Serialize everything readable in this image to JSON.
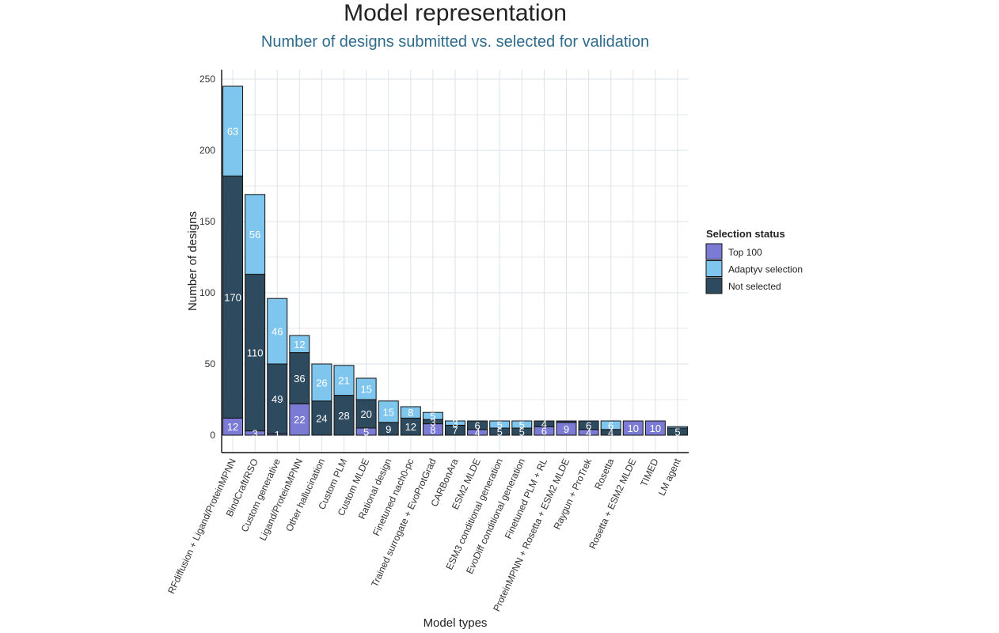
{
  "chart_data": {
    "type": "bar",
    "stacked": true,
    "title": "Model representation",
    "subtitle": "Number of designs submitted vs. selected for validation",
    "xlabel": "Model types",
    "ylabel": "Number of designs",
    "ylim": [
      0,
      255
    ],
    "yticks": [
      0,
      50,
      100,
      150,
      200,
      250
    ],
    "grid": true,
    "legend_position": "right",
    "legend_title": "Selection status",
    "categories": [
      "RFdiffusion + Ligand/ProteinMPNN",
      "BindCraft/RSO",
      "Custom generative",
      "Ligand/ProteinMPNN",
      "Other hallucination",
      "Custom PLM",
      "Custom MLDE",
      "Rational design",
      "Finetuned nach0-pc",
      "Trained surrogate + EvoProtGrad",
      "CARBonAra",
      "ESM2 MLDE",
      "ESM3 conditional generation",
      "EvoDiff conditional generation",
      "Finetuned PLM + RL",
      "ProteinMPNN + Rosetta + ESM2 MLDE",
      "Raygun + ProTrek",
      "Rosetta",
      "Rosetta + ESM2 MLDE",
      "TIMED",
      "LM agent"
    ],
    "series": [
      {
        "name": "Top 100",
        "color": "#7b7bd6",
        "values": [
          12,
          3,
          1,
          22,
          0,
          0,
          5,
          0,
          0,
          8,
          0,
          4,
          0,
          0,
          6,
          9,
          4,
          0,
          10,
          10,
          0
        ],
        "labels": [
          "12",
          "3",
          "1",
          "22",
          "",
          "",
          "5",
          "",
          "",
          "8",
          "",
          "4",
          "",
          "",
          "6",
          "9",
          "4",
          "",
          "10",
          "10",
          ""
        ]
      },
      {
        "name": "Not selected",
        "color": "#2e4a5f",
        "values": [
          170,
          110,
          49,
          36,
          24,
          28,
          20,
          9,
          12,
          3,
          7,
          6,
          5,
          5,
          4,
          1,
          6,
          4,
          0,
          0,
          5
        ],
        "labels": [
          "170",
          "110",
          "49",
          "36",
          "24",
          "28",
          "20",
          "9",
          "12",
          "3",
          "7",
          "6",
          "5",
          "5",
          "4",
          "",
          "6",
          "4",
          "",
          "",
          "5"
        ]
      },
      {
        "name": "Adaptyv selection",
        "color": "#7fc6ef",
        "values": [
          63,
          56,
          46,
          12,
          26,
          21,
          15,
          15,
          8,
          5,
          3,
          0,
          5,
          5,
          0,
          0,
          0,
          6,
          0,
          0,
          1
        ],
        "labels": [
          "63",
          "56",
          "46",
          "12",
          "26",
          "21",
          "15",
          "15",
          "8",
          "5",
          "3",
          "",
          "5",
          "5",
          "",
          "",
          "",
          "6",
          "",
          "",
          ""
        ]
      }
    ],
    "legend_order": [
      "Top 100",
      "Adaptyv selection",
      "Not selected"
    ]
  }
}
